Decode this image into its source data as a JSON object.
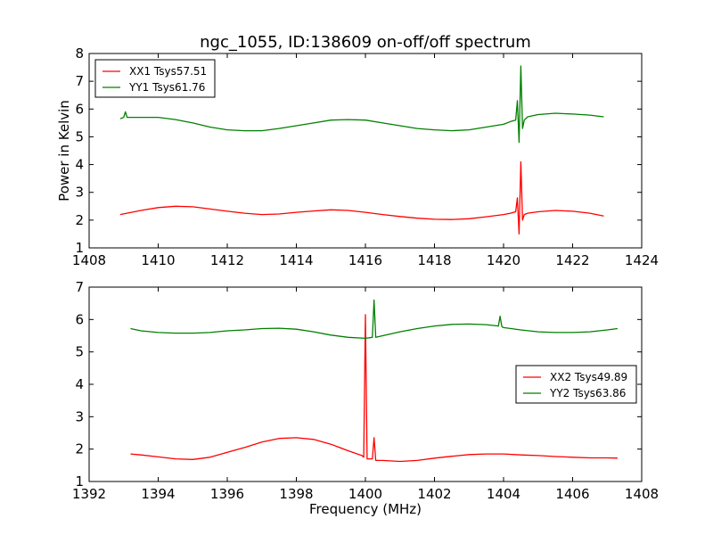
{
  "title": "ngc_1055, ID:138609 on-off/off spectrum",
  "chart_data": [
    {
      "type": "line",
      "ylabel": "Power in Kelvin",
      "xlabel": "",
      "xlim": [
        1408,
        1424
      ],
      "ylim": [
        1,
        8
      ],
      "xticks": [
        1408,
        1410,
        1412,
        1414,
        1416,
        1418,
        1420,
        1422,
        1424
      ],
      "yticks": [
        1,
        2,
        3,
        4,
        5,
        6,
        7,
        8
      ],
      "legend_position": "top-left",
      "series": [
        {
          "name": "XX1 Tsys57.51",
          "color": "#ff0000",
          "x": [
            1408.9,
            1409.5,
            1410.0,
            1410.5,
            1411.0,
            1411.5,
            1412.0,
            1412.5,
            1413.0,
            1413.5,
            1414.0,
            1414.5,
            1415.0,
            1415.5,
            1416.0,
            1416.5,
            1417.0,
            1417.5,
            1418.0,
            1418.5,
            1419.0,
            1419.5,
            1420.0,
            1420.2,
            1420.35,
            1420.4,
            1420.45,
            1420.5,
            1420.55,
            1420.6,
            1420.7,
            1421.0,
            1421.5,
            1422.0,
            1422.5,
            1422.9
          ],
          "y": [
            2.2,
            2.35,
            2.45,
            2.5,
            2.48,
            2.4,
            2.32,
            2.25,
            2.2,
            2.22,
            2.28,
            2.33,
            2.37,
            2.35,
            2.28,
            2.2,
            2.13,
            2.07,
            2.03,
            2.02,
            2.05,
            2.12,
            2.2,
            2.25,
            2.3,
            2.8,
            1.5,
            4.1,
            2.0,
            2.2,
            2.25,
            2.3,
            2.35,
            2.32,
            2.25,
            2.15
          ]
        },
        {
          "name": "YY1 Tsys61.76",
          "color": "#008000",
          "x": [
            1408.9,
            1409.0,
            1409.05,
            1409.1,
            1409.5,
            1410.0,
            1410.5,
            1411.0,
            1411.5,
            1412.0,
            1412.5,
            1413.0,
            1413.5,
            1414.0,
            1414.5,
            1415.0,
            1415.5,
            1416.0,
            1416.5,
            1417.0,
            1417.5,
            1418.0,
            1418.5,
            1419.0,
            1419.5,
            1420.0,
            1420.2,
            1420.35,
            1420.4,
            1420.45,
            1420.5,
            1420.55,
            1420.6,
            1420.7,
            1421.0,
            1421.5,
            1422.0,
            1422.5,
            1422.9
          ],
          "y": [
            5.65,
            5.7,
            5.9,
            5.7,
            5.7,
            5.7,
            5.62,
            5.5,
            5.35,
            5.25,
            5.22,
            5.22,
            5.3,
            5.4,
            5.5,
            5.6,
            5.62,
            5.6,
            5.5,
            5.4,
            5.3,
            5.25,
            5.22,
            5.25,
            5.35,
            5.45,
            5.55,
            5.6,
            6.3,
            4.8,
            7.55,
            5.3,
            5.6,
            5.72,
            5.8,
            5.85,
            5.82,
            5.78,
            5.72
          ]
        }
      ]
    },
    {
      "type": "line",
      "ylabel": "",
      "xlabel": "Frequency (MHz)",
      "xlim": [
        1392,
        1408
      ],
      "ylim": [
        1,
        7
      ],
      "xticks": [
        1392,
        1394,
        1396,
        1398,
        1400,
        1402,
        1404,
        1406,
        1408
      ],
      "yticks": [
        1,
        2,
        3,
        4,
        5,
        6,
        7
      ],
      "legend_position": "center-right",
      "series": [
        {
          "name": "XX2 Tsys49.89",
          "color": "#ff0000",
          "x": [
            1393.2,
            1393.5,
            1394.0,
            1394.5,
            1395.0,
            1395.5,
            1396.0,
            1396.5,
            1397.0,
            1397.5,
            1398.0,
            1398.5,
            1399.0,
            1399.5,
            1399.9,
            1399.95,
            1400.0,
            1400.05,
            1400.2,
            1400.25,
            1400.3,
            1400.5,
            1401.0,
            1401.5,
            1402.0,
            1402.5,
            1403.0,
            1403.5,
            1404.0,
            1404.5,
            1405.0,
            1405.5,
            1406.0,
            1406.5,
            1407.0,
            1407.3
          ],
          "y": [
            1.85,
            1.82,
            1.76,
            1.7,
            1.68,
            1.75,
            1.9,
            2.05,
            2.22,
            2.33,
            2.35,
            2.3,
            2.15,
            1.95,
            1.8,
            1.75,
            6.15,
            1.7,
            1.7,
            2.35,
            1.65,
            1.65,
            1.62,
            1.65,
            1.72,
            1.78,
            1.83,
            1.85,
            1.85,
            1.82,
            1.8,
            1.77,
            1.75,
            1.73,
            1.73,
            1.72
          ]
        },
        {
          "name": "YY2 Tsys63.86",
          "color": "#008000",
          "x": [
            1393.2,
            1393.5,
            1394.0,
            1394.5,
            1395.0,
            1395.5,
            1396.0,
            1396.5,
            1397.0,
            1397.5,
            1398.0,
            1398.5,
            1399.0,
            1399.5,
            1400.0,
            1400.2,
            1400.25,
            1400.3,
            1400.5,
            1401.0,
            1401.5,
            1402.0,
            1402.5,
            1403.0,
            1403.5,
            1403.85,
            1403.9,
            1403.95,
            1404.0,
            1404.5,
            1405.0,
            1405.5,
            1406.0,
            1406.5,
            1407.0,
            1407.3
          ],
          "y": [
            5.72,
            5.65,
            5.6,
            5.58,
            5.58,
            5.6,
            5.65,
            5.68,
            5.72,
            5.73,
            5.7,
            5.62,
            5.52,
            5.45,
            5.42,
            5.45,
            6.6,
            5.45,
            5.5,
            5.62,
            5.72,
            5.8,
            5.85,
            5.86,
            5.84,
            5.8,
            6.1,
            5.78,
            5.75,
            5.68,
            5.62,
            5.6,
            5.6,
            5.62,
            5.68,
            5.72
          ]
        }
      ]
    }
  ]
}
